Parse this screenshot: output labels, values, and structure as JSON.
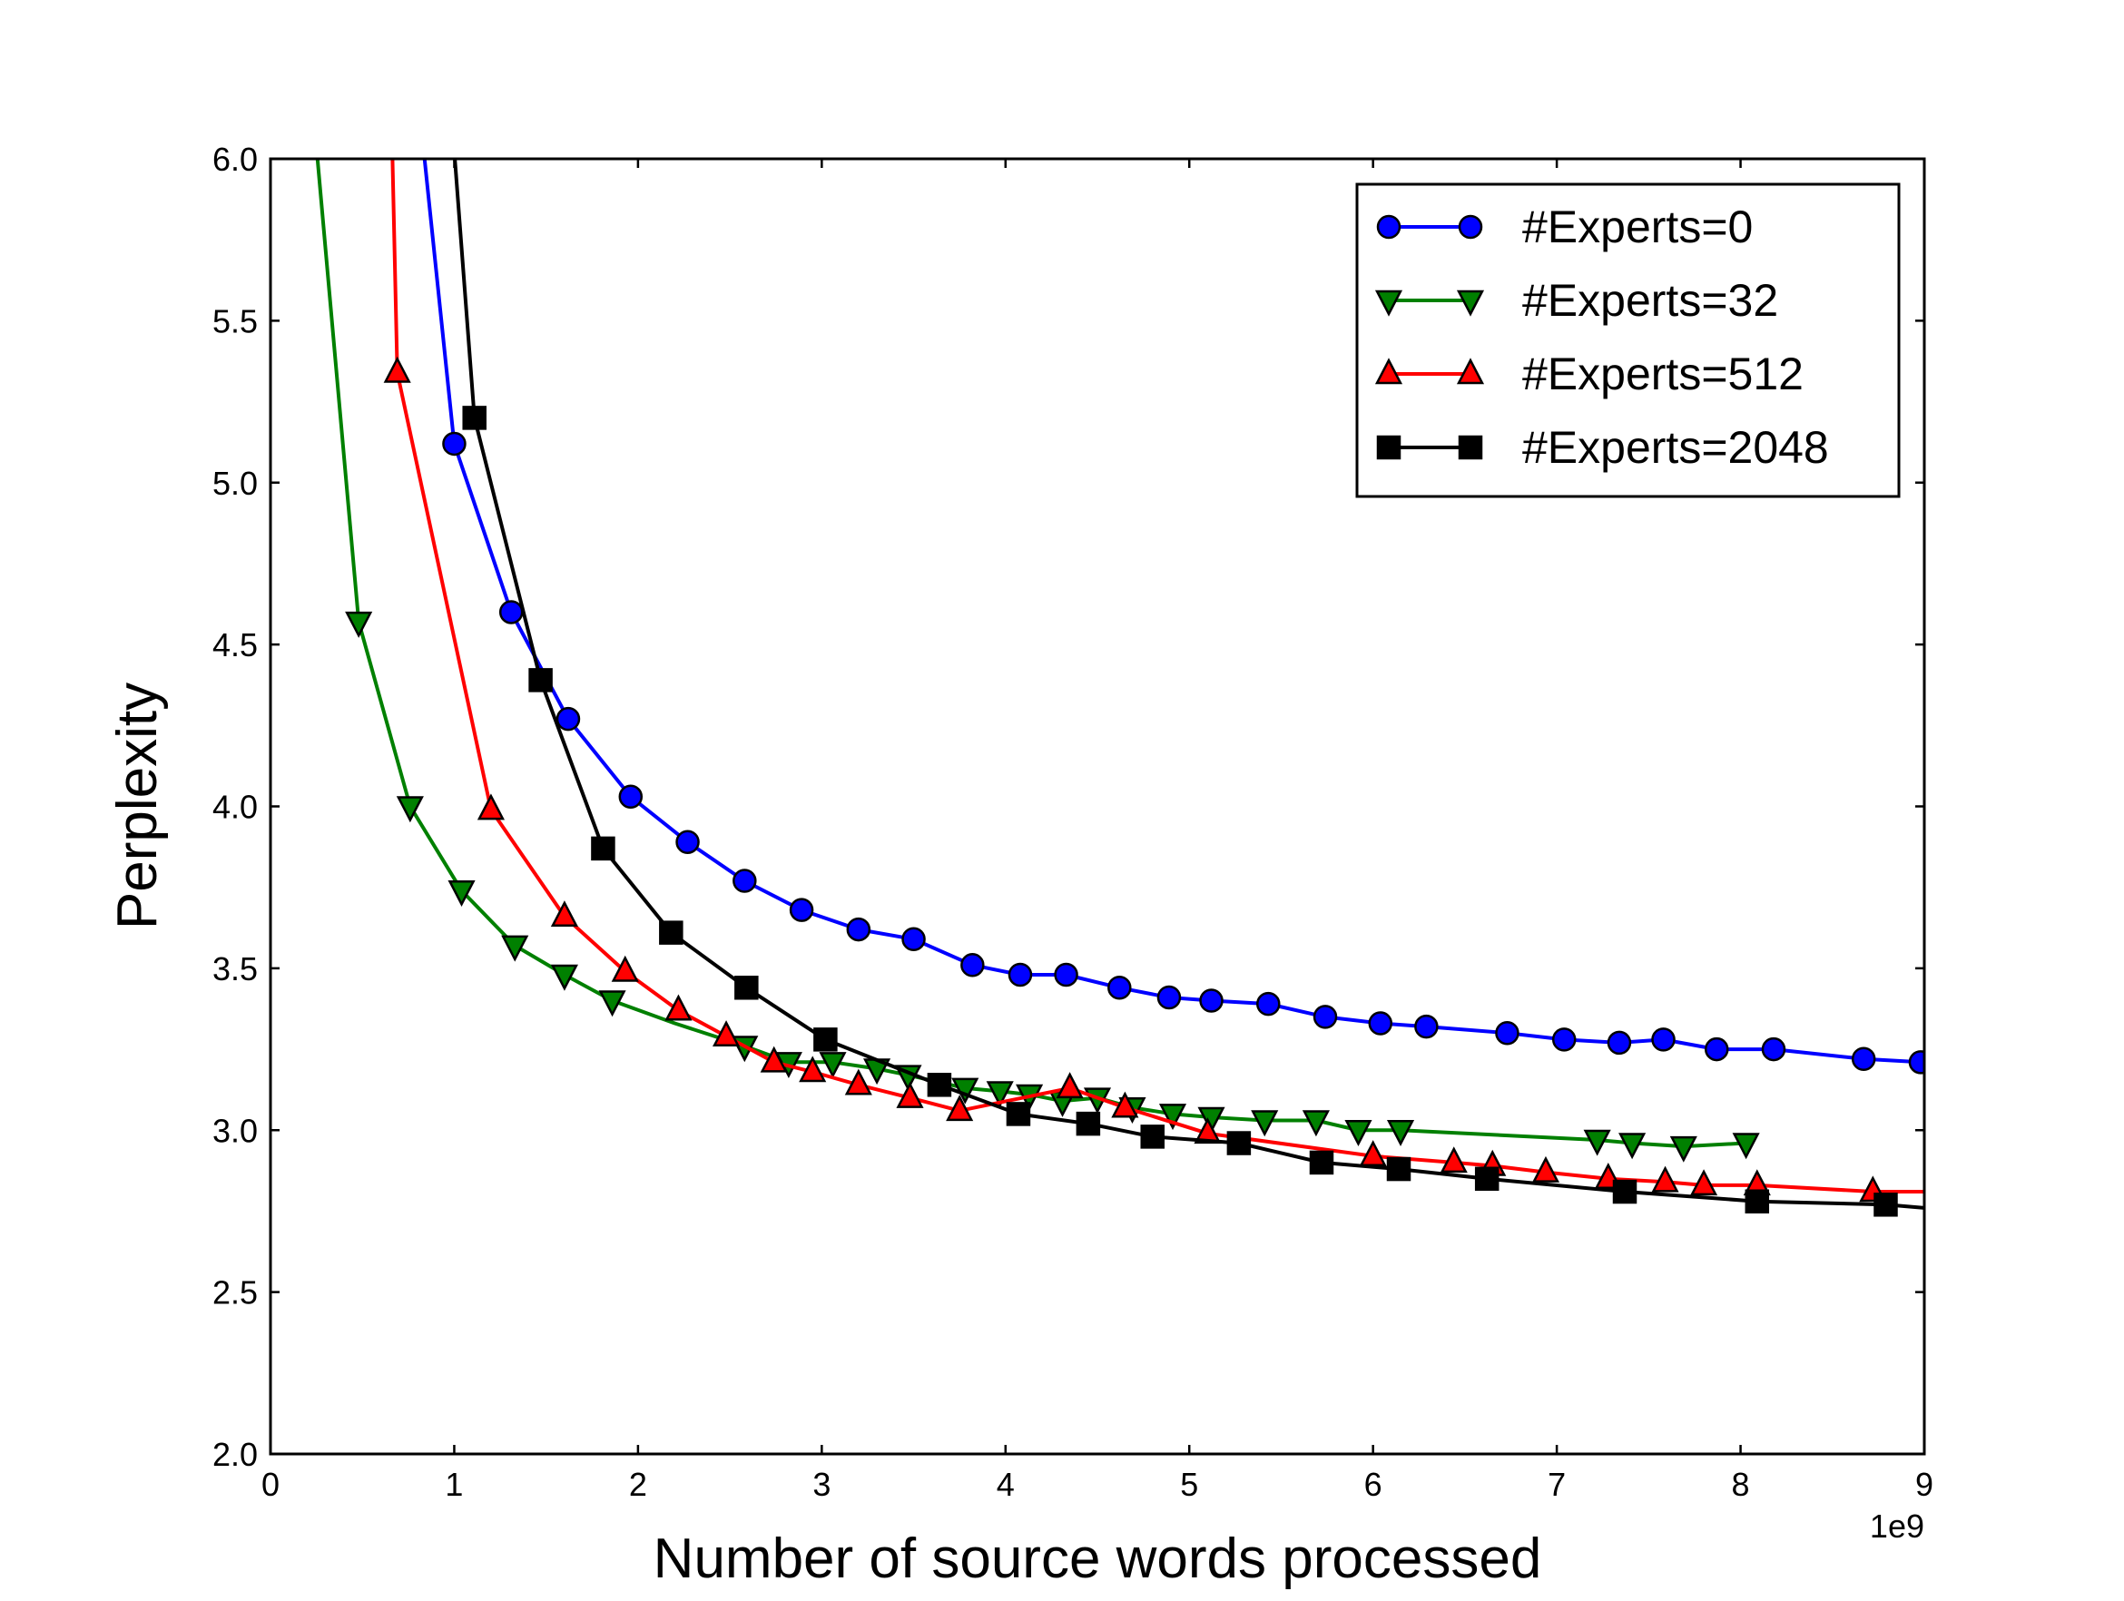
{
  "chart_data": {
    "type": "line",
    "title": "",
    "xlabel": "Number of source words processed",
    "ylabel": "Perplexity",
    "x_offset_label": "1e9",
    "xlim": [
      0,
      9
    ],
    "ylim": [
      2.0,
      6.0
    ],
    "x_ticks": [
      0,
      1,
      2,
      3,
      4,
      5,
      6,
      7,
      8,
      9
    ],
    "x_tick_labels": [
      "0",
      "1",
      "2",
      "3",
      "4",
      "5",
      "6",
      "7",
      "8",
      "9"
    ],
    "y_ticks": [
      2.0,
      2.5,
      3.0,
      3.5,
      4.0,
      4.5,
      5.0,
      5.5,
      6.0
    ],
    "y_tick_labels": [
      "2.0",
      "2.5",
      "3.0",
      "3.5",
      "4.0",
      "4.5",
      "5.0",
      "5.5",
      "6.0"
    ],
    "grid": false,
    "legend_position": "top-right",
    "series": [
      {
        "name": "#Experts=0",
        "color": "#0000ff",
        "marker": "circle",
        "line_points": [
          [
            0.82,
            6.1
          ],
          [
            1.0,
            5.12
          ],
          [
            1.31,
            4.6
          ],
          [
            1.62,
            4.27
          ],
          [
            1.96,
            4.03
          ],
          [
            2.27,
            3.89
          ],
          [
            2.58,
            3.77
          ],
          [
            2.89,
            3.68
          ],
          [
            3.2,
            3.62
          ],
          [
            3.5,
            3.59
          ],
          [
            3.82,
            3.51
          ],
          [
            4.08,
            3.48
          ],
          [
            4.33,
            3.48
          ],
          [
            4.62,
            3.44
          ],
          [
            4.89,
            3.41
          ],
          [
            5.12,
            3.4
          ],
          [
            5.43,
            3.39
          ],
          [
            5.74,
            3.35
          ],
          [
            6.04,
            3.33
          ],
          [
            6.29,
            3.32
          ],
          [
            6.73,
            3.3
          ],
          [
            7.04,
            3.28
          ],
          [
            7.34,
            3.27
          ],
          [
            7.58,
            3.28
          ],
          [
            7.87,
            3.25
          ],
          [
            8.18,
            3.25
          ],
          [
            8.67,
            3.22
          ],
          [
            8.98,
            3.21
          ],
          [
            9.0,
            3.21
          ]
        ],
        "marker_points": [
          [
            1.0,
            5.12
          ],
          [
            1.31,
            4.6
          ],
          [
            1.62,
            4.27
          ],
          [
            1.96,
            4.03
          ],
          [
            2.27,
            3.89
          ],
          [
            2.58,
            3.77
          ],
          [
            2.89,
            3.68
          ],
          [
            3.2,
            3.62
          ],
          [
            3.5,
            3.59
          ],
          [
            3.82,
            3.51
          ],
          [
            4.08,
            3.48
          ],
          [
            4.33,
            3.48
          ],
          [
            4.62,
            3.44
          ],
          [
            4.89,
            3.41
          ],
          [
            5.12,
            3.4
          ],
          [
            5.43,
            3.39
          ],
          [
            5.74,
            3.35
          ],
          [
            6.04,
            3.33
          ],
          [
            6.29,
            3.32
          ],
          [
            6.73,
            3.3
          ],
          [
            7.04,
            3.28
          ],
          [
            7.34,
            3.27
          ],
          [
            7.58,
            3.28
          ],
          [
            7.87,
            3.25
          ],
          [
            8.18,
            3.25
          ],
          [
            8.67,
            3.22
          ],
          [
            8.98,
            3.21
          ]
        ]
      },
      {
        "name": "#Experts=32",
        "color": "#008000",
        "marker": "triangle-down",
        "line_points": [
          [
            0.24,
            6.1
          ],
          [
            0.48,
            4.57
          ],
          [
            0.76,
            4.0
          ],
          [
            1.04,
            3.74
          ],
          [
            1.33,
            3.57
          ],
          [
            1.6,
            3.48
          ],
          [
            1.86,
            3.4
          ],
          [
            2.2,
            3.33
          ],
          [
            2.58,
            3.26
          ],
          [
            2.82,
            3.21
          ],
          [
            3.06,
            3.21
          ],
          [
            3.3,
            3.19
          ],
          [
            3.47,
            3.17
          ],
          [
            3.78,
            3.13
          ],
          [
            3.97,
            3.12
          ],
          [
            4.13,
            3.11
          ],
          [
            4.31,
            3.09
          ],
          [
            4.5,
            3.1
          ],
          [
            4.69,
            3.07
          ],
          [
            4.91,
            3.05
          ],
          [
            5.12,
            3.04
          ],
          [
            5.41,
            3.03
          ],
          [
            5.69,
            3.03
          ],
          [
            5.92,
            3.0
          ],
          [
            6.15,
            3.0
          ],
          [
            7.22,
            2.97
          ],
          [
            7.41,
            2.96
          ],
          [
            7.69,
            2.95
          ],
          [
            8.03,
            2.96
          ]
        ],
        "marker_points": [
          [
            0.48,
            4.57
          ],
          [
            0.76,
            4.0
          ],
          [
            1.04,
            3.74
          ],
          [
            1.33,
            3.57
          ],
          [
            1.6,
            3.48
          ],
          [
            1.86,
            3.4
          ],
          [
            2.58,
            3.26
          ],
          [
            2.82,
            3.21
          ],
          [
            3.06,
            3.21
          ],
          [
            3.3,
            3.19
          ],
          [
            3.47,
            3.17
          ],
          [
            3.78,
            3.13
          ],
          [
            3.97,
            3.12
          ],
          [
            4.13,
            3.11
          ],
          [
            4.31,
            3.09
          ],
          [
            4.5,
            3.1
          ],
          [
            4.69,
            3.07
          ],
          [
            4.91,
            3.05
          ],
          [
            5.12,
            3.04
          ],
          [
            5.41,
            3.03
          ],
          [
            5.69,
            3.03
          ],
          [
            5.92,
            3.0
          ],
          [
            6.15,
            3.0
          ],
          [
            7.22,
            2.97
          ],
          [
            7.41,
            2.96
          ],
          [
            7.69,
            2.95
          ],
          [
            8.03,
            2.96
          ]
        ]
      },
      {
        "name": "#Experts=512",
        "color": "#ff0000",
        "marker": "triangle-up",
        "line_points": [
          [
            0.66,
            6.1
          ],
          [
            0.69,
            5.34
          ],
          [
            1.2,
            3.99
          ],
          [
            1.6,
            3.66
          ],
          [
            1.93,
            3.49
          ],
          [
            2.22,
            3.37
          ],
          [
            2.48,
            3.29
          ],
          [
            2.74,
            3.21
          ],
          [
            2.95,
            3.18
          ],
          [
            3.2,
            3.14
          ],
          [
            3.48,
            3.1
          ],
          [
            3.75,
            3.06
          ],
          [
            4.35,
            3.13
          ],
          [
            4.65,
            3.07
          ],
          [
            5.1,
            2.99
          ],
          [
            6.0,
            2.92
          ],
          [
            6.44,
            2.9
          ],
          [
            6.65,
            2.89
          ],
          [
            6.94,
            2.87
          ],
          [
            7.28,
            2.85
          ],
          [
            7.59,
            2.84
          ],
          [
            7.8,
            2.83
          ],
          [
            8.09,
            2.83
          ],
          [
            8.72,
            2.81
          ],
          [
            9.0,
            2.81
          ]
        ],
        "marker_points": [
          [
            0.69,
            5.34
          ],
          [
            1.2,
            3.99
          ],
          [
            1.6,
            3.66
          ],
          [
            1.93,
            3.49
          ],
          [
            2.22,
            3.37
          ],
          [
            2.48,
            3.29
          ],
          [
            2.74,
            3.21
          ],
          [
            2.95,
            3.18
          ],
          [
            3.2,
            3.14
          ],
          [
            3.48,
            3.1
          ],
          [
            3.75,
            3.06
          ],
          [
            4.35,
            3.13
          ],
          [
            4.65,
            3.07
          ],
          [
            5.1,
            2.99
          ],
          [
            6.0,
            2.92
          ],
          [
            6.44,
            2.9
          ],
          [
            6.65,
            2.89
          ],
          [
            6.94,
            2.87
          ],
          [
            7.28,
            2.85
          ],
          [
            7.59,
            2.84
          ],
          [
            7.8,
            2.83
          ],
          [
            8.09,
            2.83
          ],
          [
            8.72,
            2.81
          ]
        ]
      },
      {
        "name": "#Experts=2048",
        "color": "#000000",
        "marker": "square",
        "line_points": [
          [
            0.99,
            6.1
          ],
          [
            1.11,
            5.2
          ],
          [
            1.47,
            4.39
          ],
          [
            1.81,
            3.87
          ],
          [
            2.18,
            3.61
          ],
          [
            2.59,
            3.44
          ],
          [
            3.02,
            3.28
          ],
          [
            3.64,
            3.14
          ],
          [
            4.07,
            3.05
          ],
          [
            4.45,
            3.02
          ],
          [
            4.8,
            2.98
          ],
          [
            5.27,
            2.96
          ],
          [
            5.72,
            2.9
          ],
          [
            6.14,
            2.88
          ],
          [
            6.62,
            2.85
          ],
          [
            7.37,
            2.81
          ],
          [
            8.09,
            2.78
          ],
          [
            8.79,
            2.77
          ],
          [
            9.0,
            2.76
          ]
        ],
        "marker_points": [
          [
            1.11,
            5.2
          ],
          [
            1.47,
            4.39
          ],
          [
            1.81,
            3.87
          ],
          [
            2.18,
            3.61
          ],
          [
            2.59,
            3.44
          ],
          [
            3.02,
            3.28
          ],
          [
            3.64,
            3.14
          ],
          [
            4.07,
            3.05
          ],
          [
            4.45,
            3.02
          ],
          [
            4.8,
            2.98
          ],
          [
            5.27,
            2.96
          ],
          [
            5.72,
            2.9
          ],
          [
            6.14,
            2.88
          ],
          [
            6.62,
            2.85
          ],
          [
            7.37,
            2.81
          ],
          [
            8.09,
            2.78
          ],
          [
            8.79,
            2.77
          ]
        ]
      }
    ]
  }
}
